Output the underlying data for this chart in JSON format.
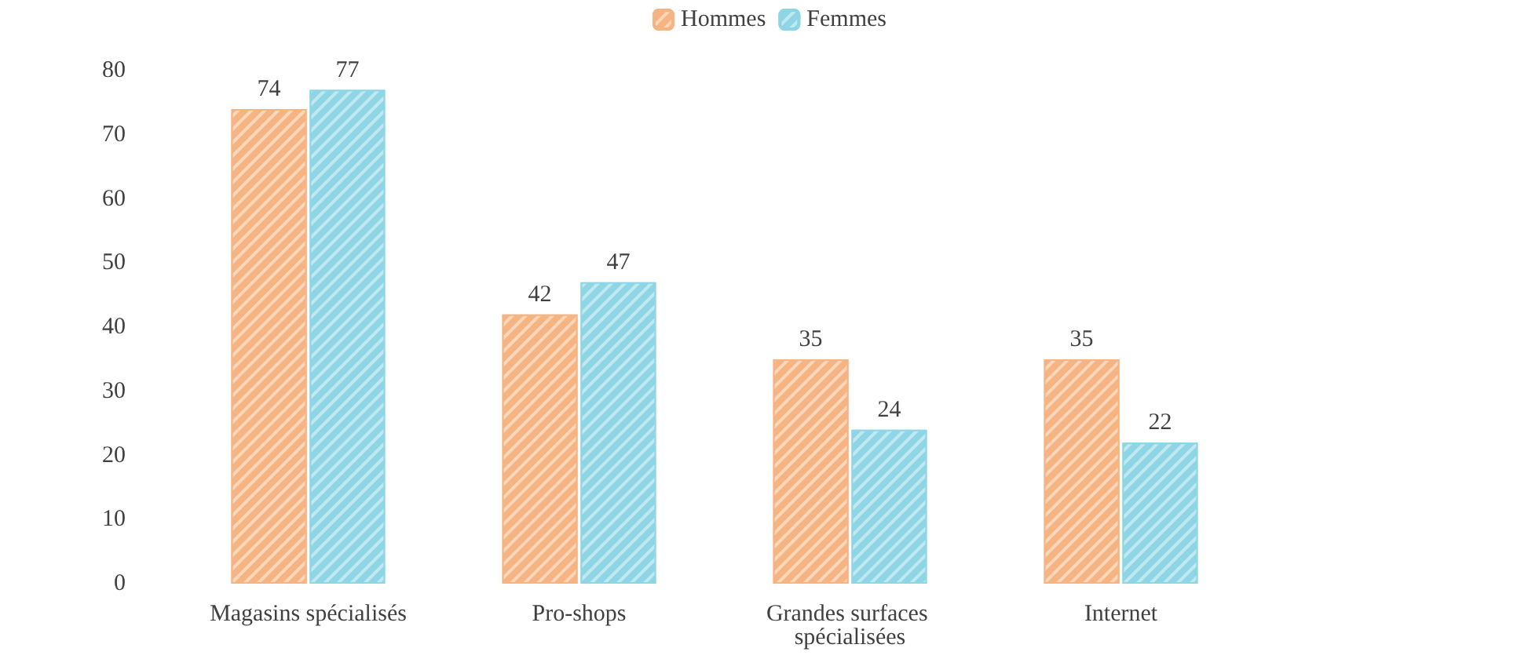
{
  "chart_data": {
    "type": "bar",
    "categories": [
      "Magasins spécialisés",
      "Pro-shops",
      "Grandes surfaces spécialisées",
      "Internet"
    ],
    "series": [
      {
        "name": "Hommes",
        "color": "#f5b482",
        "values": [
          74,
          42,
          35,
          35
        ]
      },
      {
        "name": "Femmes",
        "color": "#8ed6e6",
        "values": [
          77,
          47,
          24,
          22
        ]
      }
    ],
    "ylim": [
      0,
      80
    ],
    "yticks": [
      0,
      10,
      20,
      30,
      40,
      50,
      60,
      70,
      80
    ],
    "grid": false,
    "legend": "top",
    "data_labels": true
  }
}
